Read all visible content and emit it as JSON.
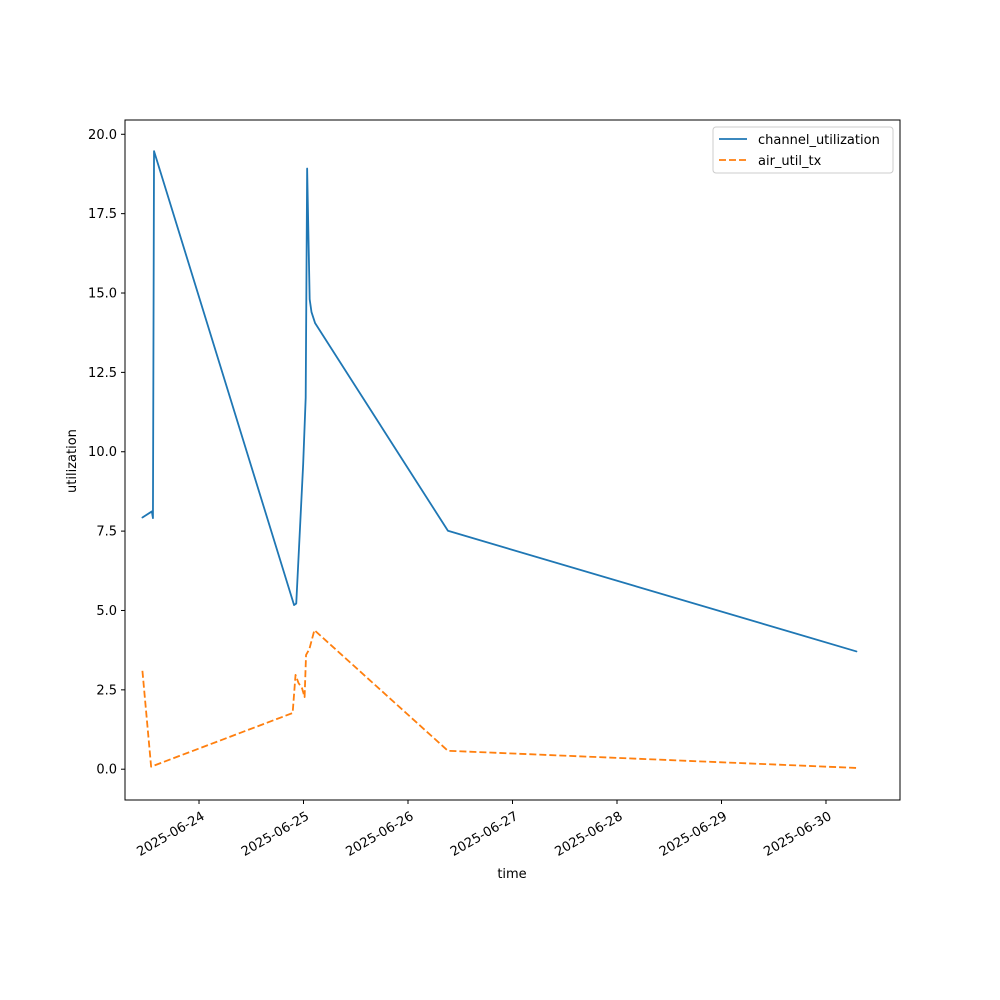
{
  "chart_data": {
    "type": "line",
    "title": "",
    "xlabel": "time",
    "ylabel": "utilization",
    "x_ticks": [
      "2025-06-24",
      "2025-06-25",
      "2025-06-26",
      "2025-06-27",
      "2025-06-28",
      "2025-06-29",
      "2025-06-30"
    ],
    "y_ticks": [
      "0.0",
      "2.5",
      "5.0",
      "7.5",
      "10.0",
      "12.5",
      "15.0",
      "17.5",
      "20.0"
    ],
    "xlim": [
      "2025-06-23 07:00",
      "2025-06-30 17:00"
    ],
    "ylim": [
      -0.97,
      20.45
    ],
    "grid": false,
    "legend_position": "upper right",
    "series": [
      {
        "name": "channel_utilization",
        "color": "#1f77b4",
        "linestyle": "solid",
        "points": [
          [
            "2025-06-23 11:00",
            7.93
          ],
          [
            "2025-06-23 13:10",
            8.12
          ],
          [
            "2025-06-23 13:25",
            7.91
          ],
          [
            "2025-06-23 13:40",
            19.47
          ],
          [
            "2025-06-24 21:50",
            5.17
          ],
          [
            "2025-06-24 22:20",
            5.22
          ],
          [
            "2025-06-24 23:55",
            9.6
          ],
          [
            "2025-06-25 00:30",
            11.7
          ],
          [
            "2025-06-25 00:50",
            18.92
          ],
          [
            "2025-06-25 01:25",
            14.8
          ],
          [
            "2025-06-25 01:50",
            14.4
          ],
          [
            "2025-06-25 02:40",
            14.05
          ],
          [
            "2025-06-26 09:10",
            7.51
          ],
          [
            "2025-06-30 07:00",
            3.71
          ]
        ]
      },
      {
        "name": "air_util_tx",
        "color": "#ff7f0e",
        "linestyle": "dashed",
        "points": [
          [
            "2025-06-23 11:00",
            3.1
          ],
          [
            "2025-06-23 13:00",
            0.08
          ],
          [
            "2025-06-24 21:30",
            1.77
          ],
          [
            "2025-06-24 22:10",
            2.97
          ],
          [
            "2025-06-24 22:50",
            2.72
          ],
          [
            "2025-06-24 23:40",
            2.55
          ],
          [
            "2025-06-25 00:15",
            2.27
          ],
          [
            "2025-06-25 00:35",
            3.6
          ],
          [
            "2025-06-25 01:20",
            3.78
          ],
          [
            "2025-06-25 02:30",
            4.38
          ],
          [
            "2025-06-26 09:10",
            0.58
          ],
          [
            "2025-06-30 07:00",
            0.04
          ]
        ]
      }
    ]
  }
}
